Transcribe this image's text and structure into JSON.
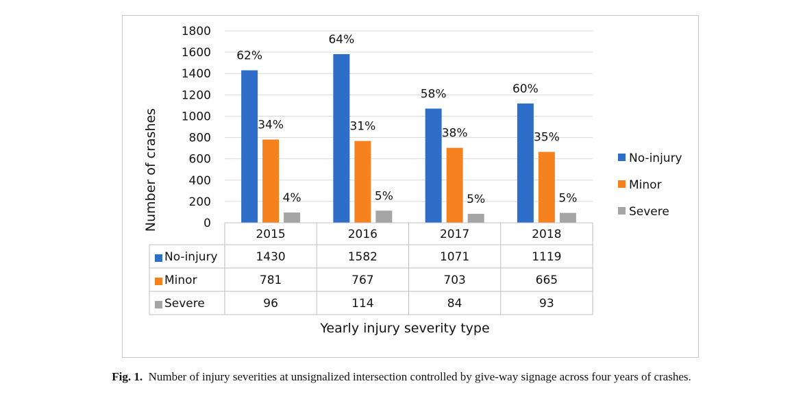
{
  "chart_data": {
    "type": "bar",
    "categories": [
      "2015",
      "2016",
      "2017",
      "2018"
    ],
    "series": [
      {
        "name": "No-injury",
        "color": "#2e6ec8",
        "values": [
          1430,
          1582,
          1071,
          1119
        ],
        "labels": [
          "62%",
          "64%",
          "58%",
          "60%"
        ]
      },
      {
        "name": "Minor",
        "color": "#f5811f",
        "values": [
          781,
          767,
          703,
          665
        ],
        "labels": [
          "34%",
          "31%",
          "38%",
          "35%"
        ]
      },
      {
        "name": "Severe",
        "color": "#a5a5a5",
        "values": [
          96,
          114,
          84,
          93
        ],
        "labels": [
          "4%",
          "5%",
          "5%",
          "5%"
        ]
      }
    ],
    "yticks": [
      "0",
      "200",
      "400",
      "600",
      "800",
      "1000",
      "1200",
      "1400",
      "1600",
      "1800"
    ],
    "ylim": [
      0,
      1800
    ],
    "ylabel": "Number of crashes",
    "xlabel": "Yearly injury severity type",
    "grid": true,
    "legend_position": "right",
    "data_table": true
  },
  "caption": {
    "label": "Fig. 1.",
    "text": "Number of injury severities at unsignalized intersection controlled by give-way signage across four years of crashes."
  }
}
